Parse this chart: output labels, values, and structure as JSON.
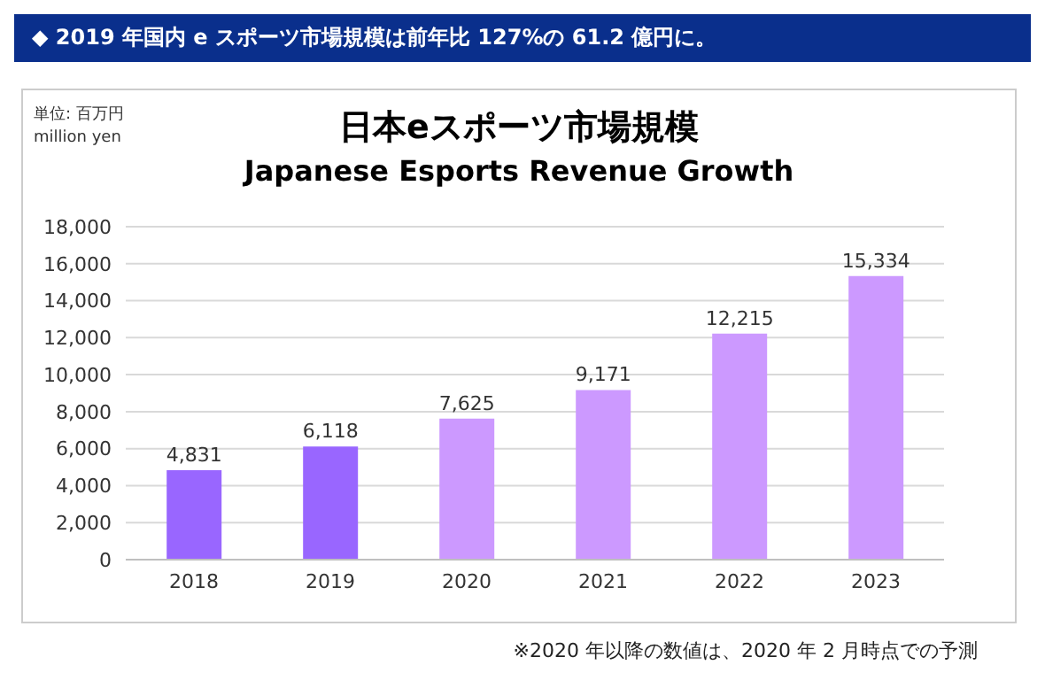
{
  "chart_data": {
    "type": "bar",
    "title": "日本eスポーツ市場規模",
    "subtitle": "Japanese Esports Revenue Growth",
    "ylabel": "単位: 百万円\nmillion yen",
    "annotations": [
      "◆ 2019 年国内 e スポーツ市場規模は前年比 127%の 61.2 億円に。",
      "※2020 年以降の数値は、2020 年 2 月時点での予測"
    ],
    "categories": [
      "2018",
      "2019",
      "2020",
      "2021",
      "2022",
      "2023"
    ],
    "values": [
      4831,
      6118,
      7625,
      9171,
      12215,
      15334
    ],
    "value_labels": [
      "4,831",
      "6,118",
      "7,625",
      "9,171",
      "12,215",
      "15,334"
    ],
    "colors": [
      "#9966ff",
      "#9966ff",
      "#cc99ff",
      "#cc99ff",
      "#cc99ff",
      "#cc99ff"
    ],
    "ylim": [
      0,
      18000
    ],
    "yticks": [
      0,
      {
        "value": 2000,
        "label": "2,000"
      },
      {
        "value": 4000,
        "label": "4,000"
      },
      {
        "value": 6000,
        "label": "6,000"
      },
      {
        "value": 8000,
        "label": "8,000"
      },
      {
        "value": 10000,
        "label": "10,000"
      },
      {
        "value": 12000,
        "label": "12,000"
      },
      {
        "value": 14000,
        "label": "14,000"
      },
      {
        "value": 16000,
        "label": "16,000"
      },
      {
        "value": 18000,
        "label": "18,000"
      }
    ],
    "grid": "y"
  }
}
